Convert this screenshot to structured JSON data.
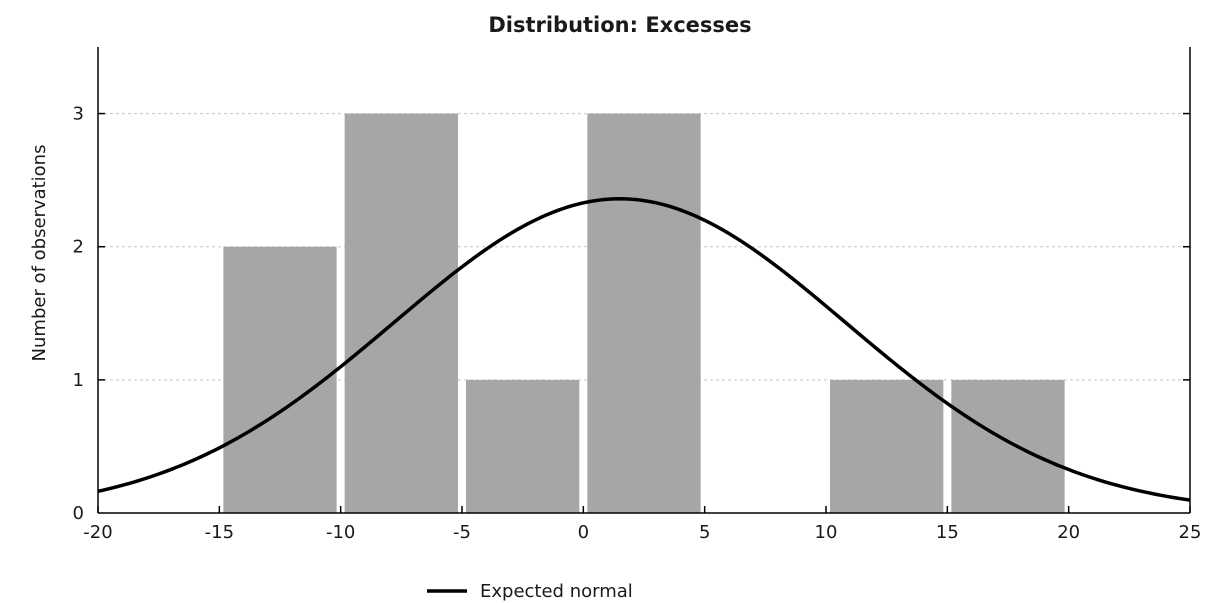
{
  "chart_data": {
    "type": "bar",
    "title": "Distribution: Excesses",
    "xlabel": "",
    "ylabel": "Number of observations",
    "xlim": [
      -20,
      25
    ],
    "ylim": [
      0,
      3.5
    ],
    "x_ticks": [
      "-20",
      "-15",
      "-10",
      "-5",
      "0",
      "5",
      "10",
      "15",
      "20",
      "25"
    ],
    "y_ticks": [
      "0",
      "1",
      "2",
      "3"
    ],
    "grid": true,
    "bins": [
      {
        "from": -15,
        "to": -10,
        "value": 2
      },
      {
        "from": -10,
        "to": -5,
        "value": 3
      },
      {
        "from": -5,
        "to": 0,
        "value": 1
      },
      {
        "from": 0,
        "to": 5,
        "value": 3
      },
      {
        "from": 5,
        "to": 10,
        "value": 0
      },
      {
        "from": 10,
        "to": 15,
        "value": 1
      },
      {
        "from": 15,
        "to": 20,
        "value": 1
      }
    ],
    "normal_curve": {
      "name": "Expected normal",
      "mean": 1.5,
      "peak": 2.36,
      "sd": 9.3
    },
    "legend": {
      "placement": "bottom-center",
      "entries": [
        "Expected normal"
      ]
    },
    "colors": {
      "bars": "#a6a6a6",
      "curve": "#000000",
      "grid": "#c8c8c8",
      "axis": "#000000"
    }
  }
}
